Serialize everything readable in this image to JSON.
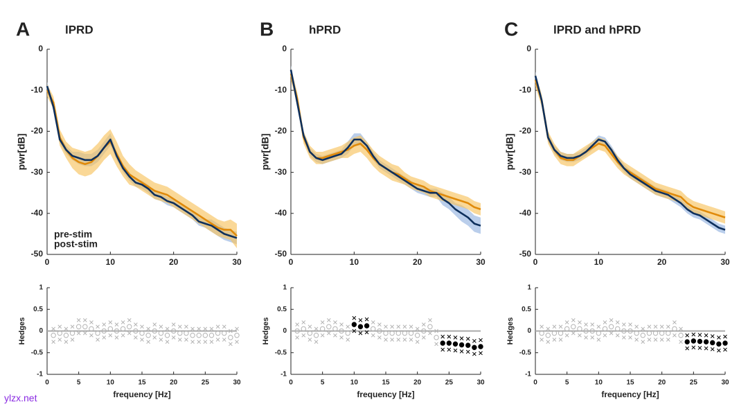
{
  "watermark": "ylzx.net",
  "chart_data": [
    {
      "type": "line",
      "panel_label": "A",
      "title": "lPRD",
      "ylabel": "pwr[dB]",
      "legend": "lower left",
      "x": [
        0,
        1,
        2,
        3,
        4,
        5,
        6,
        7,
        8,
        9,
        10,
        11,
        12,
        13,
        14,
        15,
        16,
        17,
        18,
        19,
        20,
        21,
        22,
        23,
        24,
        25,
        26,
        27,
        28,
        29,
        30
      ],
      "xlim": [
        0,
        30
      ],
      "xticks": [
        0,
        10,
        20,
        30
      ],
      "ylim": [
        -50,
        0
      ],
      "yticks": [
        0,
        -10,
        -20,
        -30,
        -40,
        -50
      ],
      "series": [
        {
          "name": "pre-stim",
          "color": "#0d2f5c",
          "band_color": "#a9c2e6",
          "values": [
            -9,
            -14,
            -22,
            -24.5,
            -26,
            -26.5,
            -27,
            -27,
            -26,
            -24,
            -22,
            -26,
            -29,
            -31,
            -32.5,
            -33,
            -34,
            -35.5,
            -36,
            -37,
            -37.5,
            -38.5,
            -39.5,
            -40.5,
            -42,
            -42.5,
            -43,
            -44,
            -45,
            -45.5,
            -46
          ],
          "error": [
            1,
            1,
            1,
            1,
            1,
            1.5,
            1.5,
            1.5,
            1.5,
            1.5,
            1.5,
            1,
            1,
            1,
            1,
            1,
            1,
            1,
            1,
            1,
            1,
            1,
            1,
            1,
            1,
            1,
            1.5,
            1.5,
            1.5,
            1.5,
            1.5
          ]
        },
        {
          "name": "post-stim",
          "color": "#e08a0a",
          "band_color": "#f8c35f",
          "values": [
            -10,
            -13,
            -21.5,
            -24.5,
            -26.5,
            -27.5,
            -28,
            -27.5,
            -26,
            -24,
            -22.5,
            -25.5,
            -28.5,
            -30.5,
            -31.5,
            -32.5,
            -33.5,
            -34.5,
            -35,
            -35.5,
            -36.5,
            -37.5,
            -38.5,
            -39.5,
            -40.5,
            -41.5,
            -42.5,
            -43.5,
            -44,
            -44,
            -45.5
          ],
          "error": [
            1.5,
            1.5,
            2,
            2,
            2.5,
            3,
            3,
            3,
            3,
            3,
            3,
            3,
            2.5,
            2.5,
            2,
            2,
            2,
            2,
            2,
            2,
            2,
            2,
            2,
            2,
            2,
            2,
            2,
            2,
            2,
            2.5,
            3
          ]
        }
      ]
    },
    {
      "type": "line",
      "panel_label": "B",
      "title": "hPRD",
      "ylabel": "pwr[dB]",
      "x": [
        0,
        1,
        2,
        3,
        4,
        5,
        6,
        7,
        8,
        9,
        10,
        11,
        12,
        13,
        14,
        15,
        16,
        17,
        18,
        19,
        20,
        21,
        22,
        23,
        24,
        25,
        26,
        27,
        28,
        29,
        30
      ],
      "xlim": [
        0,
        30
      ],
      "xticks": [
        0,
        10,
        20,
        30
      ],
      "ylim": [
        -50,
        0
      ],
      "yticks": [
        0,
        -10,
        -20,
        -30,
        -40,
        -50
      ],
      "series": [
        {
          "color": "#0d2f5c",
          "band_color": "#a9c2e6",
          "values": [
            -5,
            -13,
            -21,
            -25,
            -26.5,
            -27,
            -26.5,
            -26,
            -25.5,
            -24,
            -22,
            -22,
            -23.5,
            -26,
            -28,
            -29,
            -30,
            -31,
            -32,
            -33,
            -34,
            -34.5,
            -35,
            -35,
            -36.5,
            -37.5,
            -39,
            -40,
            -41,
            -42.5,
            -43
          ],
          "error": [
            1,
            1,
            1,
            1,
            1,
            1,
            1,
            1,
            1,
            1.5,
            1.5,
            1.5,
            1,
            1,
            1,
            1,
            1,
            1,
            1,
            1,
            1,
            1,
            1,
            1,
            1.5,
            1.5,
            1.5,
            2,
            2,
            2,
            2
          ]
        },
        {
          "color": "#e08a0a",
          "band_color": "#f8c35f",
          "values": [
            -6,
            -12,
            -21.5,
            -25,
            -26.5,
            -26.5,
            -26,
            -25.5,
            -25,
            -24.5,
            -23.5,
            -23,
            -24.5,
            -26.5,
            -28,
            -29,
            -30,
            -30.5,
            -31.5,
            -32.5,
            -33,
            -33.5,
            -34.5,
            -35,
            -35.5,
            -36,
            -36.5,
            -37,
            -37.5,
            -38.5,
            -39
          ],
          "error": [
            1.5,
            1.5,
            1.5,
            1.5,
            1.5,
            1.5,
            1.5,
            1.5,
            1.5,
            2,
            2,
            2,
            2,
            2,
            2,
            2,
            2,
            2,
            1.5,
            1.5,
            1.5,
            1.5,
            1.5,
            1.5,
            1.5,
            1.5,
            1.5,
            1.5,
            1.5,
            1.5,
            1.5
          ]
        }
      ]
    },
    {
      "type": "line",
      "panel_label": "C",
      "title": "lPRD and hPRD",
      "ylabel": "pwr[dB]",
      "x": [
        0,
        1,
        2,
        3,
        4,
        5,
        6,
        7,
        8,
        9,
        10,
        11,
        12,
        13,
        14,
        15,
        16,
        17,
        18,
        19,
        20,
        21,
        22,
        23,
        24,
        25,
        26,
        27,
        28,
        29,
        30
      ],
      "xlim": [
        0,
        30
      ],
      "xticks": [
        0,
        10,
        20,
        30
      ],
      "ylim": [
        -50,
        0
      ],
      "yticks": [
        0,
        -10,
        -20,
        -30,
        -40,
        -50
      ],
      "series": [
        {
          "color": "#0d2f5c",
          "band_color": "#a9c2e6",
          "values": [
            -6.5,
            -12.5,
            -21.5,
            -24.5,
            -26,
            -26.5,
            -26.5,
            -26,
            -25,
            -23.5,
            -22,
            -22.5,
            -24.5,
            -27,
            -29,
            -30.5,
            -31.5,
            -32.5,
            -33.5,
            -34.5,
            -35,
            -35.5,
            -36.5,
            -37.5,
            -39,
            -40,
            -40.5,
            -41.5,
            -42.5,
            -43.5,
            -44
          ],
          "error": [
            1,
            1,
            1,
            1,
            1,
            1,
            1,
            1,
            1,
            1,
            1,
            1,
            1,
            1,
            1,
            1,
            1,
            1,
            1,
            1,
            1,
            1,
            1,
            1,
            1,
            1,
            1,
            1,
            1,
            1,
            1
          ]
        },
        {
          "color": "#e08a0a",
          "band_color": "#f8c35f",
          "values": [
            -7.5,
            -12.5,
            -21.5,
            -24.5,
            -26.5,
            -27,
            -27,
            -26,
            -25,
            -24,
            -23,
            -23.5,
            -25.5,
            -27.5,
            -29,
            -30,
            -31,
            -32,
            -33,
            -34,
            -34.5,
            -35,
            -35.5,
            -36,
            -37.5,
            -38.5,
            -39,
            -39.5,
            -40,
            -40.5,
            -41
          ],
          "error": [
            1.5,
            1.5,
            1.5,
            1.5,
            1.5,
            1.5,
            1.5,
            1.5,
            1.5,
            1.5,
            1.5,
            1.5,
            1.5,
            1.5,
            1.5,
            1.5,
            1.5,
            1.5,
            1.5,
            1.5,
            1.5,
            1.5,
            1.5,
            1.5,
            1.5,
            1.5,
            1.5,
            1.5,
            1.5,
            1.5,
            1.5
          ]
        }
      ]
    },
    {
      "type": "scatter",
      "xlabel": "frequency [Hz]",
      "ylabel": "Hedges",
      "hline": 0,
      "colors": {
        "significant": "#000000",
        "not_significant": "#b4b4b4"
      },
      "x": [
        1,
        2,
        3,
        4,
        5,
        6,
        7,
        8,
        9,
        10,
        11,
        12,
        13,
        14,
        15,
        16,
        17,
        18,
        19,
        20,
        21,
        22,
        23,
        24,
        25,
        26,
        27,
        28,
        29,
        30
      ],
      "xlim": [
        0,
        30
      ],
      "xticks": [
        0,
        5,
        10,
        15,
        20,
        25,
        30
      ],
      "ylim": [
        -1,
        1
      ],
      "yticks": [
        1,
        0.5,
        0,
        -0.5,
        -1
      ],
      "values": [
        -0.1,
        -0.05,
        -0.1,
        -0.05,
        0.1,
        0.1,
        0.05,
        -0.05,
        0,
        0.05,
        0,
        0.05,
        0.1,
        0,
        -0.05,
        -0.1,
        0,
        -0.05,
        -0.1,
        0,
        -0.05,
        -0.05,
        -0.1,
        -0.1,
        -0.1,
        -0.1,
        -0.05,
        -0.05,
        -0.15,
        -0.1
      ],
      "lower": [
        -0.25,
        -0.2,
        -0.25,
        -0.2,
        -0.05,
        -0.05,
        -0.1,
        -0.2,
        -0.15,
        -0.1,
        -0.15,
        -0.1,
        -0.05,
        -0.15,
        -0.2,
        -0.25,
        -0.15,
        -0.2,
        -0.25,
        -0.15,
        -0.2,
        -0.2,
        -0.25,
        -0.25,
        -0.25,
        -0.25,
        -0.2,
        -0.2,
        -0.3,
        -0.25
      ],
      "upper": [
        0.05,
        0.1,
        0.05,
        0.1,
        0.25,
        0.25,
        0.2,
        0.1,
        0.15,
        0.2,
        0.15,
        0.2,
        0.25,
        0.15,
        0.1,
        0.05,
        0.15,
        0.1,
        0.05,
        0.15,
        0.1,
        0.1,
        0.05,
        0.05,
        0.05,
        0.05,
        0.1,
        0.1,
        0,
        0.05
      ],
      "significant": [
        false,
        false,
        false,
        false,
        false,
        false,
        false,
        false,
        false,
        false,
        false,
        false,
        false,
        false,
        false,
        false,
        false,
        false,
        false,
        false,
        false,
        false,
        false,
        false,
        false,
        false,
        false,
        false,
        false,
        false
      ]
    },
    {
      "type": "scatter",
      "xlabel": "frequency [Hz]",
      "ylabel": "Hedges",
      "hline": 0,
      "colors": {
        "significant": "#000000",
        "not_significant": "#b4b4b4"
      },
      "x": [
        1,
        2,
        3,
        4,
        5,
        6,
        7,
        8,
        9,
        10,
        11,
        12,
        13,
        14,
        15,
        16,
        17,
        18,
        19,
        20,
        21,
        22,
        23,
        24,
        25,
        26,
        27,
        28,
        29,
        30
      ],
      "xlim": [
        0,
        30
      ],
      "xticks": [
        0,
        5,
        10,
        15,
        20,
        25,
        30
      ],
      "ylim": [
        -1,
        1
      ],
      "yticks": [
        1,
        0.5,
        0,
        -0.5,
        -1
      ],
      "values": [
        0,
        0.05,
        -0.05,
        -0.1,
        0.05,
        0.1,
        0.05,
        0,
        -0.05,
        0.15,
        0.1,
        0.12,
        0.05,
        0,
        -0.05,
        -0.05,
        -0.05,
        -0.05,
        -0.05,
        -0.1,
        0,
        0.1,
        -0.15,
        -0.28,
        -0.28,
        -0.3,
        -0.32,
        -0.33,
        -0.38,
        -0.36
      ],
      "lower": [
        -0.15,
        -0.1,
        -0.2,
        -0.25,
        -0.1,
        -0.05,
        -0.1,
        -0.15,
        -0.2,
        0,
        -0.05,
        -0.03,
        -0.1,
        -0.15,
        -0.2,
        -0.2,
        -0.2,
        -0.2,
        -0.2,
        -0.25,
        -0.15,
        -0.05,
        -0.3,
        -0.43,
        -0.43,
        -0.45,
        -0.47,
        -0.48,
        -0.53,
        -0.51
      ],
      "upper": [
        0.15,
        0.2,
        0.1,
        0.05,
        0.2,
        0.25,
        0.2,
        0.15,
        0.1,
        0.3,
        0.25,
        0.27,
        0.2,
        0.15,
        0.1,
        0.1,
        0.1,
        0.1,
        0.1,
        0.05,
        0.15,
        0.25,
        0,
        -0.13,
        -0.13,
        -0.15,
        -0.17,
        -0.18,
        -0.23,
        -0.21
      ],
      "significant": [
        false,
        false,
        false,
        false,
        false,
        false,
        false,
        false,
        false,
        true,
        true,
        true,
        false,
        false,
        false,
        false,
        false,
        false,
        false,
        false,
        false,
        false,
        false,
        true,
        true,
        true,
        true,
        true,
        true,
        true
      ]
    },
    {
      "type": "scatter",
      "xlabel": "frequency [Hz]",
      "ylabel": "Hedges",
      "hline": 0,
      "colors": {
        "significant": "#000000",
        "not_significant": "#b4b4b4"
      },
      "x": [
        1,
        2,
        3,
        4,
        5,
        6,
        7,
        8,
        9,
        10,
        11,
        12,
        13,
        14,
        15,
        16,
        17,
        18,
        19,
        20,
        21,
        22,
        23,
        24,
        25,
        26,
        27,
        28,
        29,
        30
      ],
      "xlim": [
        0,
        30
      ],
      "xticks": [
        0,
        5,
        10,
        15,
        20,
        25,
        30
      ],
      "ylim": [
        -1,
        1
      ],
      "yticks": [
        1,
        0.5,
        0,
        -0.5,
        -1
      ],
      "values": [
        -0.05,
        -0.1,
        -0.05,
        -0.05,
        0.05,
        0.1,
        0.05,
        0,
        0,
        -0.05,
        0.05,
        0.1,
        0.05,
        0,
        0,
        -0.05,
        -0.1,
        -0.05,
        -0.05,
        -0.05,
        -0.05,
        0.05,
        -0.1,
        -0.25,
        -0.23,
        -0.24,
        -0.25,
        -0.27,
        -0.3,
        -0.28
      ],
      "lower": [
        -0.2,
        -0.25,
        -0.2,
        -0.2,
        -0.1,
        -0.05,
        -0.1,
        -0.15,
        -0.15,
        -0.2,
        -0.1,
        -0.05,
        -0.1,
        -0.15,
        -0.15,
        -0.2,
        -0.25,
        -0.2,
        -0.2,
        -0.2,
        -0.2,
        -0.1,
        -0.25,
        -0.4,
        -0.38,
        -0.39,
        -0.4,
        -0.42,
        -0.45,
        -0.43
      ],
      "upper": [
        0.1,
        0.05,
        0.1,
        0.1,
        0.2,
        0.25,
        0.2,
        0.15,
        0.15,
        0.1,
        0.2,
        0.25,
        0.2,
        0.15,
        0.15,
        0.1,
        0.05,
        0.1,
        0.1,
        0.1,
        0.1,
        0.2,
        0.05,
        -0.1,
        -0.08,
        -0.09,
        -0.1,
        -0.12,
        -0.15,
        -0.13
      ],
      "significant": [
        false,
        false,
        false,
        false,
        false,
        false,
        false,
        false,
        false,
        false,
        false,
        false,
        false,
        false,
        false,
        false,
        false,
        false,
        false,
        false,
        false,
        false,
        false,
        true,
        true,
        true,
        true,
        true,
        true,
        true
      ]
    }
  ]
}
